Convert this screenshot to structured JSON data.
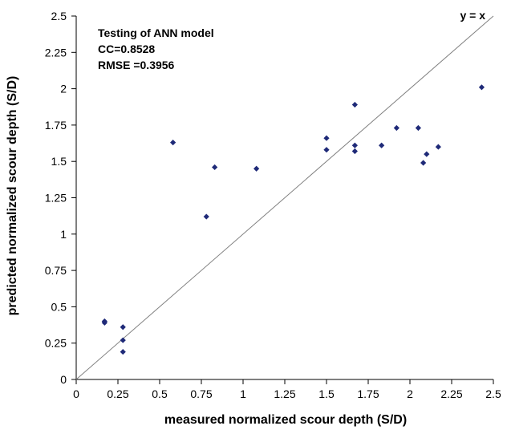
{
  "chart_data": {
    "type": "scatter",
    "xlabel": "measured normalized scour depth (S/D)",
    "ylabel": "predicted normalized scour depth (S/D)",
    "xlim": [
      0,
      2.5
    ],
    "ylim": [
      0,
      2.5
    ],
    "x_ticks": [
      "0",
      "0.25",
      "0.5",
      "0.75",
      "1",
      "1.25",
      "1.5",
      "1.75",
      "2",
      "2.25",
      "2.5"
    ],
    "y_ticks": [
      "0",
      "0.25",
      "0.5",
      "0.75",
      "1",
      "1.25",
      "1.5",
      "1.75",
      "2",
      "2.25",
      "2.5"
    ],
    "annotations": [
      "Testing of ANN model",
      "CC=0.8528",
      "RMSE =0.3956"
    ],
    "line_label": "y = x",
    "line_color": "#808080",
    "marker_color": "#1f2a78",
    "grid": false,
    "series": [
      {
        "points": [
          [
            0.17,
            0.4
          ],
          [
            0.17,
            0.39
          ],
          [
            0.28,
            0.36
          ],
          [
            0.28,
            0.27
          ],
          [
            0.28,
            0.19
          ],
          [
            0.58,
            1.63
          ],
          [
            0.78,
            1.12
          ],
          [
            0.83,
            1.46
          ],
          [
            1.08,
            1.45
          ],
          [
            1.5,
            1.66
          ],
          [
            1.5,
            1.58
          ],
          [
            1.67,
            1.89
          ],
          [
            1.67,
            1.61
          ],
          [
            1.67,
            1.57
          ],
          [
            1.83,
            1.61
          ],
          [
            1.92,
            1.73
          ],
          [
            2.05,
            1.73
          ],
          [
            2.08,
            1.49
          ],
          [
            2.1,
            1.55
          ],
          [
            2.17,
            1.6
          ],
          [
            2.43,
            2.01
          ]
        ]
      }
    ]
  }
}
